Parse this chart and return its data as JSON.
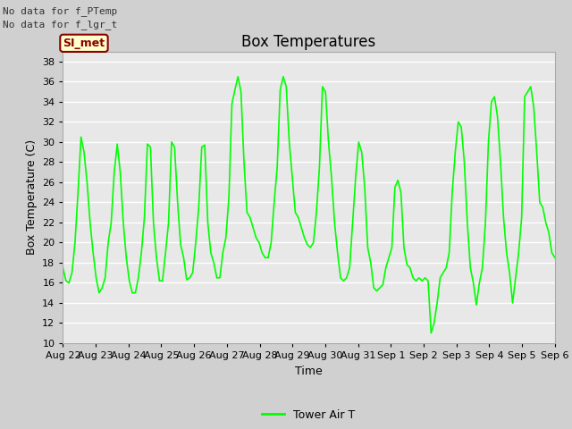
{
  "title": "Box Temperatures",
  "ylabel": "Box Temperature (C)",
  "xlabel": "Time",
  "ylim": [
    10,
    39
  ],
  "yticks": [
    10,
    12,
    14,
    16,
    18,
    20,
    22,
    24,
    26,
    28,
    30,
    32,
    34,
    36,
    38
  ],
  "line_color": "#00FF00",
  "line_width": 1.2,
  "fig_bg_color": "#D0D0D0",
  "plot_bg_color": "#E8E8E8",
  "no_data_text1": "No data for f_PTemp",
  "no_data_text2": "No data for f_lgr_t",
  "legend_label": "Tower Air T",
  "legend_box_text": "SI_met",
  "legend_box_color": "#FFFFCC",
  "legend_box_border": "#8B0000",
  "legend_text_color": "#8B0000",
  "title_fontsize": 12,
  "label_fontsize": 9,
  "tick_fontsize": 8,
  "nodata_fontsize": 8,
  "simet_fontsize": 9,
  "legend_fontsize": 9,
  "grid_color": "#FFFFFF",
  "x_labels": [
    "Aug 22",
    "Aug 23",
    "Aug 24",
    "Aug 25",
    "Aug 26",
    "Aug 27",
    "Aug 28",
    "Aug 29",
    "Aug 30",
    "Aug 31",
    "Sep 1",
    "Sep 2",
    "Sep 3",
    "Sep 4",
    "Sep 5",
    "Sep 6"
  ],
  "tower_air_t": [
    17.5,
    16.2,
    16.0,
    17.0,
    20.0,
    25.0,
    30.5,
    29.0,
    26.0,
    22.0,
    19.0,
    16.5,
    15.0,
    15.5,
    16.5,
    20.0,
    22.0,
    27.0,
    29.8,
    27.0,
    22.0,
    18.5,
    16.2,
    15.0,
    15.0,
    16.5,
    19.0,
    22.5,
    29.8,
    29.5,
    22.0,
    18.5,
    16.2,
    16.2,
    19.0,
    22.0,
    30.0,
    29.5,
    24.0,
    19.8,
    18.5,
    16.3,
    16.5,
    17.0,
    20.0,
    23.5,
    29.5,
    29.7,
    22.0,
    19.0,
    18.0,
    16.5,
    16.5,
    19.0,
    20.5,
    24.5,
    33.8,
    35.2,
    36.5,
    35.0,
    28.0,
    23.0,
    22.5,
    21.5,
    20.5,
    20.0,
    19.0,
    18.5,
    18.5,
    20.0,
    24.0,
    27.5,
    35.2,
    36.5,
    35.5,
    30.0,
    26.5,
    23.0,
    22.5,
    21.5,
    20.5,
    19.8,
    19.5,
    20.0,
    23.0,
    27.5,
    35.5,
    35.0,
    30.0,
    26.5,
    22.0,
    19.0,
    16.5,
    16.2,
    16.5,
    17.5,
    22.0,
    26.5,
    30.0,
    29.0,
    25.5,
    19.5,
    18.0,
    15.5,
    15.2,
    15.5,
    15.8,
    17.5,
    18.5,
    19.5,
    25.5,
    26.2,
    25.0,
    19.5,
    17.8,
    17.5,
    16.5,
    16.2,
    16.5,
    16.2,
    16.5,
    16.2,
    11.0,
    12.0,
    14.0,
    16.5,
    17.0,
    17.5,
    19.0,
    25.0,
    29.0,
    32.0,
    31.5,
    28.0,
    22.0,
    17.5,
    16.0,
    13.8,
    16.0,
    17.5,
    22.0,
    30.0,
    34.0,
    34.5,
    32.5,
    28.0,
    22.5,
    19.0,
    17.0,
    14.0,
    16.5,
    19.0,
    22.5,
    34.5,
    35.0,
    35.5,
    33.5,
    29.0,
    24.0,
    23.5,
    22.0,
    21.0,
    19.0,
    18.5
  ]
}
